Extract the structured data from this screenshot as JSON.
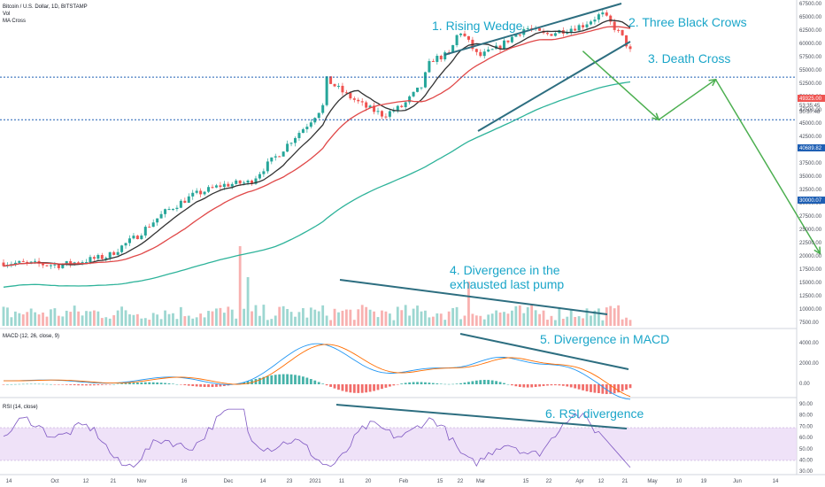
{
  "header": {
    "symbol": "Bitcoin / U.S. Dollar, 1D, BITSTAMP",
    "indicator1": "Vol",
    "indicator2": "MA Cross"
  },
  "panes": {
    "macd_label": "MACD (12, 26, close, 9)",
    "rsi_label": "RSI (14, close)"
  },
  "annotations": {
    "a1": "1. Rising Wedge",
    "a2": "2. Three Black Crows",
    "a3": "3. Death Cross",
    "a4_line1": "4. Divergence in the",
    "a4_line2": "exhausted last pump",
    "a5": "5. Divergence in MACD",
    "a6": "6. RSI divergence"
  },
  "price_tags": {
    "last": "49325.00",
    "sub1": "53:35:45",
    "sub2": "50:37:48",
    "level_high": "40689.82",
    "level_low": "30000.07"
  },
  "colors": {
    "bull": "#26a69a",
    "bear": "#ef5350",
    "annotation": "#1ba6c9",
    "trendline": "#2d6e80",
    "arrow": "#4caf50",
    "ma_short": "#333333",
    "ma_mid": "#e04848",
    "ma_long": "#2eb39a",
    "macd_line": "#2196f3",
    "signal_line": "#ff6d00",
    "rsi_line": "#7e57c2",
    "rsi_band": "#e9d8f5",
    "hline": "#1e5fb4",
    "tag_red": "#ef5350",
    "tag_blue": "#1e5fb4"
  },
  "chart_data": [
    {
      "type": "candlestick",
      "title": "Bitcoin / U.S. Dollar, 1D, BITSTAMP",
      "x_ticks": [
        "14",
        "Oct",
        "12",
        "21",
        "Nov",
        "16",
        "Dec",
        "14",
        "23",
        "2021",
        "11",
        "20",
        "Feb",
        "15",
        "22",
        "Mar",
        "15",
        "22",
        "Apr",
        "12",
        "21",
        "May",
        "10",
        "19",
        "Jun",
        "14"
      ],
      "y_ticks": [
        "67500.00",
        "65000.00",
        "62500.00",
        "60000.00",
        "57500.00",
        "55000.00",
        "52500.00",
        "50000.00",
        "47500.00",
        "45000.00",
        "42500.00",
        "40000.00",
        "37500.00",
        "35000.00",
        "32500.00",
        "30000.00",
        "27500.00",
        "25000.00",
        "22500.00",
        "20000.00",
        "17500.00",
        "15000.00",
        "12500.00",
        "10000.00",
        "7500.00"
      ],
      "y_scale": "log",
      "ylim": [
        7000,
        68000
      ],
      "series": [
        {
          "name": "Vol",
          "kind": "volume histogram"
        },
        {
          "name": "MA Cross",
          "kind": "moving averages"
        }
      ],
      "horizontal_levels": [
        40689.82,
        30000.07
      ],
      "projection_path": [
        [
          2021.3,
          49000
        ],
        [
          2021.38,
          30000
        ],
        [
          2021.44,
          40000
        ],
        [
          2021.55,
          11500
        ]
      ],
      "price_path": [
        [
          2020.69,
          10800
        ],
        [
          2020.75,
          10600
        ],
        [
          2020.8,
          11300
        ],
        [
          2020.83,
          13000
        ],
        [
          2020.86,
          15500
        ],
        [
          2020.89,
          17500
        ],
        [
          2020.92,
          18800
        ],
        [
          2020.95,
          19200
        ],
        [
          2020.98,
          23500
        ],
        [
          2021.01,
          29000
        ],
        [
          2021.03,
          34000
        ],
        [
          2021.03,
          40000
        ],
        [
          2021.05,
          36000
        ],
        [
          2021.07,
          33000
        ],
        [
          2021.09,
          31000
        ],
        [
          2021.11,
          33000
        ],
        [
          2021.13,
          38000
        ],
        [
          2021.14,
          46000
        ],
        [
          2021.16,
          48000
        ],
        [
          2021.17,
          57000
        ],
        [
          2021.19,
          47000
        ],
        [
          2021.21,
          50000
        ],
        [
          2021.24,
          58000
        ],
        [
          2021.26,
          55000
        ],
        [
          2021.28,
          57000
        ],
        [
          2021.3,
          59000
        ],
        [
          2021.32,
          64000
        ],
        [
          2021.34,
          55000
        ],
        [
          2021.35,
          49000
        ]
      ]
    },
    {
      "type": "line",
      "title": "MACD (12, 26, close, 9)",
      "y_ticks": [
        "4000.00",
        "2000.00",
        "0.00"
      ],
      "series": [
        {
          "name": "MACD"
        },
        {
          "name": "Signal"
        },
        {
          "name": "Histogram"
        }
      ]
    },
    {
      "type": "line",
      "title": "RSI (14, close)",
      "y_ticks": [
        "90.00",
        "80.00",
        "70.00",
        "60.00",
        "50.00",
        "40.00",
        "30.00"
      ],
      "band": [
        30,
        70
      ],
      "series": [
        {
          "name": "RSI"
        }
      ]
    }
  ]
}
